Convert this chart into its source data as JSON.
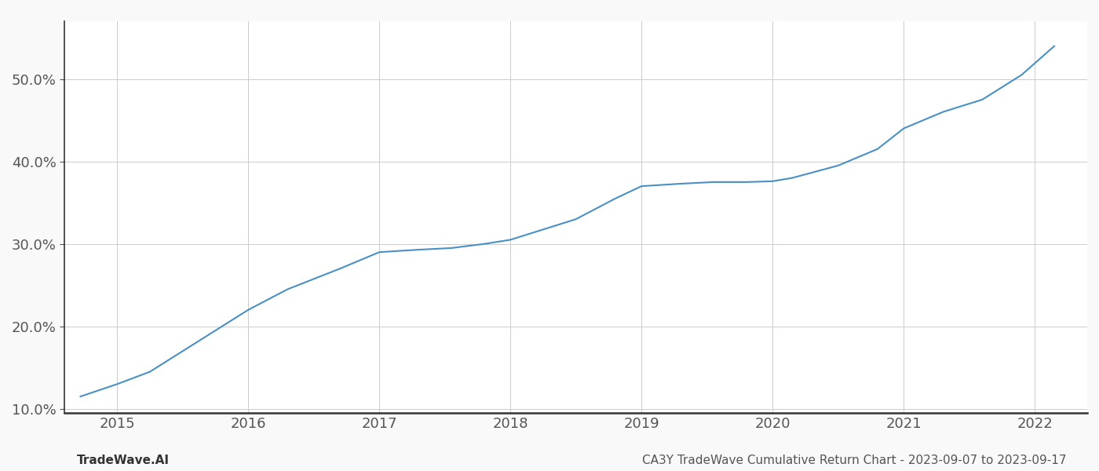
{
  "x": [
    2014.72,
    2015.0,
    2015.25,
    2015.6,
    2016.0,
    2016.3,
    2016.7,
    2017.0,
    2017.3,
    2017.55,
    2017.8,
    2018.0,
    2018.2,
    2018.5,
    2018.8,
    2019.0,
    2019.3,
    2019.55,
    2019.8,
    2020.0,
    2020.15,
    2020.5,
    2020.8,
    2021.0,
    2021.3,
    2021.6,
    2021.9,
    2022.15
  ],
  "y": [
    11.5,
    13.0,
    14.5,
    18.0,
    22.0,
    24.5,
    27.0,
    29.0,
    29.3,
    29.5,
    30.0,
    30.5,
    31.5,
    33.0,
    35.5,
    37.0,
    37.3,
    37.5,
    37.5,
    37.6,
    38.0,
    39.5,
    41.5,
    44.0,
    46.0,
    47.5,
    50.5,
    54.0
  ],
  "line_color": "#4a90c4",
  "line_width": 1.5,
  "bg_color": "#f9f9f9",
  "plot_bg_color": "#ffffff",
  "grid_color": "#cccccc",
  "footer_left": "TradeWave.AI",
  "footer_right": "CA3Y TradeWave Cumulative Return Chart - 2023-09-07 to 2023-09-17",
  "xtick_labels": [
    "2015",
    "2016",
    "2017",
    "2018",
    "2019",
    "2020",
    "2021",
    "2022"
  ],
  "xtick_positions": [
    2015,
    2016,
    2017,
    2018,
    2019,
    2020,
    2021,
    2022
  ],
  "ytick_values": [
    10.0,
    20.0,
    30.0,
    40.0,
    50.0
  ],
  "ylim": [
    9.5,
    57.0
  ],
  "xlim": [
    2014.6,
    2022.4
  ],
  "tick_fontsize": 13,
  "footer_fontsize": 11,
  "left_spine_color": "#333333",
  "bottom_spine_color": "#333333"
}
